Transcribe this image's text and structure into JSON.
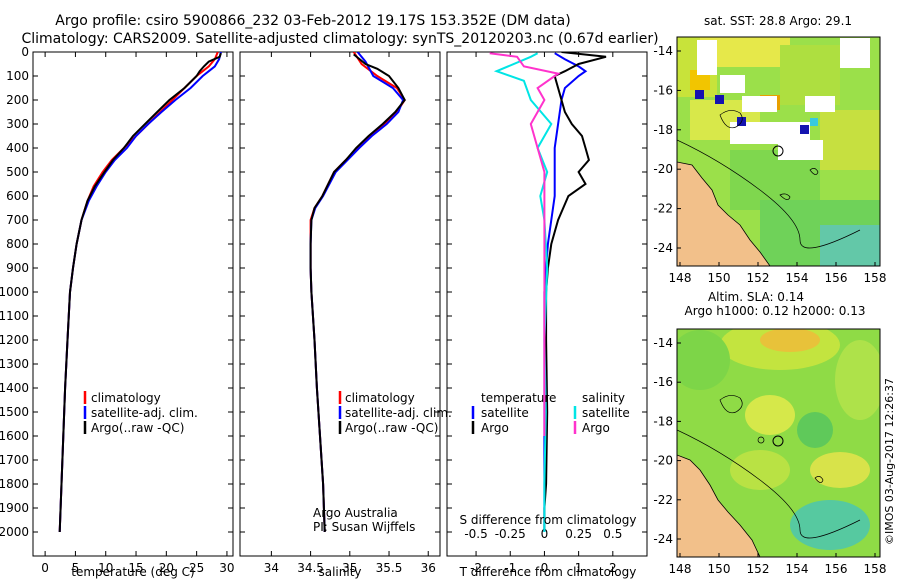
{
  "title": {
    "line1": "Argo profile: csiro 5900866_232 03-Feb-2012 19.17S 153.352E (DM data)",
    "line2": "Climatology: CARS2009. Satellite-adjusted climatology: synTS_20120203.nc (0.67d earlier)"
  },
  "colors": {
    "climatology": "#ff0000",
    "satellite": "#0000ff",
    "argo": "#000000",
    "sal_satellite": "#00e5e5",
    "sal_argo": "#ff33cc",
    "land": "#f2c08a"
  },
  "chart_data": [
    {
      "type": "line",
      "name": "temperature",
      "xlabel": "temperature (deg C)",
      "ylabel": "",
      "xlim": [
        -2,
        31
      ],
      "ylim": [
        2100,
        0
      ],
      "xticks": [
        "0",
        "5",
        "10",
        "15",
        "20",
        "25",
        "30"
      ],
      "xtick_values": [
        0,
        5,
        10,
        15,
        20,
        25,
        30
      ],
      "yticks": [
        "0",
        "100",
        "200",
        "300",
        "400",
        "500",
        "600",
        "700",
        "800",
        "900",
        "1000",
        "1100",
        "1200",
        "1300",
        "1400",
        "1500",
        "1600",
        "1700",
        "1800",
        "1900",
        "2000"
      ],
      "ytick_values": [
        0,
        100,
        200,
        300,
        400,
        500,
        600,
        700,
        800,
        900,
        1000,
        1100,
        1200,
        1300,
        1400,
        1500,
        1600,
        1700,
        1800,
        1900,
        2000
      ],
      "legend": [
        "climatology",
        "satellite-adj. clim.",
        "Argo(..raw -QC)"
      ],
      "series": [
        {
          "name": "climatology",
          "color_key": "climatology",
          "points": [
            [
              28.5,
              0
            ],
            [
              28,
              30
            ],
            [
              27,
              60
            ],
            [
              26,
              80
            ],
            [
              25,
              100
            ],
            [
              23,
              150
            ],
            [
              21,
              200
            ],
            [
              19,
              250
            ],
            [
              17,
              300
            ],
            [
              15,
              350
            ],
            [
              13,
              400
            ],
            [
              11,
              450
            ],
            [
              9.5,
              500
            ],
            [
              8,
              560
            ],
            [
              7,
              620
            ],
            [
              6,
              700
            ],
            [
              5.2,
              800
            ],
            [
              4.6,
              900
            ],
            [
              4.1,
              1000
            ],
            [
              3.7,
              1200
            ],
            [
              3.3,
              1400
            ],
            [
              3,
              1600
            ],
            [
              2.7,
              1800
            ],
            [
              2.4,
              2000
            ]
          ]
        },
        {
          "name": "satellite-adj. clim.",
          "color_key": "satellite",
          "points": [
            [
              29,
              0
            ],
            [
              28.7,
              30
            ],
            [
              28,
              60
            ],
            [
              27,
              80
            ],
            [
              26,
              100
            ],
            [
              24,
              150
            ],
            [
              21.5,
              200
            ],
            [
              19.2,
              250
            ],
            [
              17,
              300
            ],
            [
              15,
              350
            ],
            [
              13.5,
              400
            ],
            [
              11.5,
              450
            ],
            [
              10,
              500
            ],
            [
              8.5,
              560
            ],
            [
              7.2,
              620
            ],
            [
              6,
              700
            ],
            [
              5.2,
              800
            ],
            [
              4.6,
              900
            ],
            [
              4.1,
              1000
            ],
            [
              3.7,
              1200
            ],
            [
              3.3,
              1400
            ],
            [
              3,
              1600
            ],
            [
              2.7,
              1800
            ],
            [
              2.4,
              2000
            ]
          ]
        },
        {
          "name": "Argo(..raw -QC)",
          "color_key": "argo",
          "points": [
            [
              29,
              5
            ],
            [
              28.8,
              20
            ],
            [
              27,
              40
            ],
            [
              26.2,
              60
            ],
            [
              25.5,
              80
            ],
            [
              25,
              100
            ],
            [
              23,
              150
            ],
            [
              20.5,
              200
            ],
            [
              18.5,
              250
            ],
            [
              16.5,
              300
            ],
            [
              14.5,
              350
            ],
            [
              13,
              400
            ],
            [
              11.2,
              450
            ],
            [
              9.8,
              500
            ],
            [
              8.2,
              560
            ],
            [
              7,
              620
            ],
            [
              6,
              700
            ],
            [
              5.2,
              800
            ],
            [
              4.6,
              900
            ],
            [
              4.1,
              1000
            ],
            [
              3.7,
              1200
            ],
            [
              3.3,
              1400
            ],
            [
              3,
              1600
            ],
            [
              2.7,
              1800
            ],
            [
              2.4,
              2000
            ]
          ]
        }
      ]
    },
    {
      "type": "line",
      "name": "salinity",
      "xlabel": "salinity",
      "xlim": [
        33.6,
        36.15
      ],
      "ylim": [
        2100,
        0
      ],
      "xticks": [
        "34",
        "34.5",
        "35",
        "35.5",
        "36"
      ],
      "xtick_values": [
        34,
        34.5,
        35,
        35.5,
        36
      ],
      "legend": [
        "climatology",
        "satellite-adj. clim.",
        "Argo(..raw -QC)"
      ],
      "annotation": [
        "Argo Australia",
        "PI: Susan Wijffels"
      ],
      "series": [
        {
          "name": "climatology",
          "color_key": "climatology",
          "points": [
            [
              35.05,
              0
            ],
            [
              35.15,
              50
            ],
            [
              35.35,
              100
            ],
            [
              35.6,
              150
            ],
            [
              35.7,
              200
            ],
            [
              35.6,
              250
            ],
            [
              35.45,
              300
            ],
            [
              35.25,
              350
            ],
            [
              35.1,
              400
            ],
            [
              34.95,
              450
            ],
            [
              34.8,
              500
            ],
            [
              34.65,
              600
            ],
            [
              34.55,
              650
            ],
            [
              34.5,
              700
            ],
            [
              34.5,
              800
            ],
            [
              34.5,
              900
            ],
            [
              34.51,
              1000
            ],
            [
              34.55,
              1200
            ],
            [
              34.58,
              1400
            ],
            [
              34.62,
              1600
            ],
            [
              34.66,
              1800
            ],
            [
              34.68,
              2000
            ]
          ]
        },
        {
          "name": "satellite-adj. clim.",
          "color_key": "satellite",
          "points": [
            [
              35.1,
              0
            ],
            [
              35.2,
              40
            ],
            [
              35.3,
              100
            ],
            [
              35.55,
              150
            ],
            [
              35.68,
              200
            ],
            [
              35.62,
              250
            ],
            [
              35.47,
              300
            ],
            [
              35.28,
              350
            ],
            [
              35.12,
              400
            ],
            [
              34.97,
              450
            ],
            [
              34.82,
              500
            ],
            [
              34.66,
              600
            ],
            [
              34.56,
              650
            ],
            [
              34.51,
              700
            ],
            [
              34.5,
              800
            ],
            [
              34.5,
              900
            ],
            [
              34.51,
              1000
            ],
            [
              34.55,
              1200
            ],
            [
              34.58,
              1400
            ],
            [
              34.62,
              1600
            ],
            [
              34.66,
              1800
            ],
            [
              34.68,
              2000
            ]
          ]
        },
        {
          "name": "Argo(..raw -QC)",
          "color_key": "argo",
          "points": [
            [
              35.05,
              10
            ],
            [
              35.2,
              50
            ],
            [
              35.35,
              70
            ],
            [
              35.5,
              100
            ],
            [
              35.62,
              150
            ],
            [
              35.7,
              200
            ],
            [
              35.58,
              250
            ],
            [
              35.42,
              300
            ],
            [
              35.24,
              350
            ],
            [
              35.08,
              400
            ],
            [
              34.95,
              450
            ],
            [
              34.8,
              500
            ],
            [
              34.65,
              600
            ],
            [
              34.55,
              650
            ],
            [
              34.51,
              700
            ],
            [
              34.5,
              800
            ],
            [
              34.5,
              900
            ],
            [
              34.51,
              1000
            ],
            [
              34.55,
              1200
            ],
            [
              34.58,
              1400
            ],
            [
              34.62,
              1600
            ],
            [
              34.66,
              1800
            ],
            [
              34.68,
              2000
            ]
          ]
        }
      ]
    },
    {
      "type": "line",
      "name": "difference",
      "xlabel": "T difference from climatology",
      "xlabel_top": "S difference from climatology",
      "xlim": [
        -2.85,
        3
      ],
      "ylim": [
        2100,
        0
      ],
      "xticks": [
        "-2",
        "-1",
        "0",
        "1",
        "2"
      ],
      "xtick_values": [
        -2,
        -1,
        0,
        1,
        2
      ],
      "sticks": [
        "-0.5",
        "-0.25",
        "0",
        "0.25",
        "0.5"
      ],
      "stick_values": [
        -0.5,
        -0.25,
        0,
        0.25,
        0.5
      ],
      "legend_t_title": "temperature",
      "legend_s_title": "salinity",
      "legend_t": [
        "satellite",
        "Argo"
      ],
      "legend_s": [
        "satellite",
        "Argo"
      ],
      "series": [
        {
          "name": "T satellite",
          "color_key": "satellite",
          "points": [
            [
              0.3,
              5
            ],
            [
              0.6,
              30
            ],
            [
              1,
              60
            ],
            [
              1.2,
              80
            ],
            [
              1,
              100
            ],
            [
              0.6,
              150
            ],
            [
              0.5,
              200
            ],
            [
              0.4,
              300
            ],
            [
              0.3,
              400
            ],
            [
              0.3,
              500
            ],
            [
              0.3,
              600
            ],
            [
              0.2,
              700
            ],
            [
              0.1,
              800
            ],
            [
              0.05,
              900
            ],
            [
              0,
              1000
            ],
            [
              0,
              1500
            ],
            [
              0,
              2000
            ]
          ]
        },
        {
          "name": "T Argo",
          "color_key": "argo",
          "points": [
            [
              0.5,
              0
            ],
            [
              1.8,
              20
            ],
            [
              1,
              50
            ],
            [
              0.6,
              80
            ],
            [
              0.3,
              100
            ],
            [
              0.4,
              150
            ],
            [
              0.5,
              200
            ],
            [
              0.6,
              250
            ],
            [
              0.8,
              300
            ],
            [
              1.1,
              350
            ],
            [
              1.2,
              400
            ],
            [
              1.3,
              450
            ],
            [
              1,
              500
            ],
            [
              1.2,
              550
            ],
            [
              0.7,
              600
            ],
            [
              0.4,
              700
            ],
            [
              0.2,
              800
            ],
            [
              0.1,
              900
            ],
            [
              0.05,
              1000
            ],
            [
              0.05,
              1200
            ],
            [
              0.08,
              1500
            ],
            [
              0.05,
              1800
            ],
            [
              0,
              1900
            ],
            [
              0,
              2000
            ]
          ]
        },
        {
          "name": "S satellite",
          "color_key": "sal_satellite",
          "points": [
            [
              -0.05,
              5
            ],
            [
              -0.1,
              20
            ],
            [
              -0.35,
              80
            ],
            [
              -0.15,
              120
            ],
            [
              -0.1,
              200
            ],
            [
              0.05,
              300
            ],
            [
              -0.05,
              400
            ],
            [
              0.02,
              500
            ],
            [
              -0.03,
              600
            ],
            [
              0,
              700
            ],
            [
              0.02,
              900
            ],
            [
              0,
              1200
            ],
            [
              0.01,
              1500
            ],
            [
              0,
              1800
            ],
            [
              0,
              2000
            ]
          ]
        },
        {
          "name": "S Argo",
          "color_key": "sal_argo",
          "points": [
            [
              -0.4,
              5
            ],
            [
              -0.2,
              20
            ],
            [
              -0.15,
              60
            ],
            [
              0.1,
              90
            ],
            [
              -0.05,
              150
            ],
            [
              0,
              200
            ],
            [
              -0.05,
              250
            ],
            [
              -0.1,
              300
            ],
            [
              -0.05,
              400
            ],
            [
              0,
              500
            ],
            [
              0,
              600
            ],
            [
              0,
              800
            ],
            [
              0,
              1000
            ],
            [
              0,
              1300
            ],
            [
              0,
              1600
            ]
          ]
        }
      ]
    }
  ],
  "maps": {
    "top": {
      "title": "sat. SST: 28.8 Argo: 29.1",
      "title2": "",
      "xticks": [
        "148",
        "150",
        "152",
        "154",
        "156",
        "158"
      ],
      "yticks": [
        "-14",
        "-16",
        "-18",
        "-20",
        "-22",
        "-24"
      ]
    },
    "bottom": {
      "title": "Altim. SLA: 0.14",
      "title2": "Argo h1000: 0.12 h2000: 0.13",
      "xticks": [
        "148",
        "150",
        "152",
        "154",
        "156",
        "158"
      ],
      "yticks": [
        "-14",
        "-16",
        "-18",
        "-20",
        "-22",
        "-24"
      ]
    }
  },
  "footer_stamp": "©IMOS 03-Aug-2017 12:26:37"
}
